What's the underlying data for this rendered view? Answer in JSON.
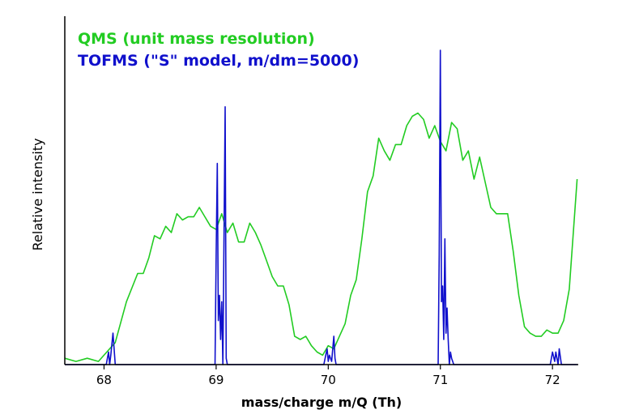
{
  "chart_data": {
    "type": "line",
    "title": "",
    "xlabel": "mass/charge m/Q (Th)",
    "ylabel": "Relative intensity",
    "xlim": [
      67.65,
      72.23
    ],
    "ylim": [
      0,
      100
    ],
    "xticks": [
      68,
      69,
      70,
      71,
      72
    ],
    "tick_labels": [
      "68",
      "69",
      "70",
      "71",
      "72"
    ],
    "grid": false,
    "legend": "top-left",
    "series": [
      {
        "name": "QMS (unit mass resolution)",
        "color": "#22cc22",
        "x": [
          67.65,
          67.75,
          67.85,
          67.95,
          68.0,
          68.1,
          68.2,
          68.3,
          68.35,
          68.4,
          68.45,
          68.5,
          68.55,
          68.6,
          68.65,
          68.7,
          68.75,
          68.8,
          68.85,
          68.9,
          68.95,
          69.0,
          69.05,
          69.1,
          69.15,
          69.2,
          69.25,
          69.3,
          69.35,
          69.4,
          69.45,
          69.5,
          69.55,
          69.6,
          69.65,
          69.7,
          69.75,
          69.8,
          69.85,
          69.9,
          69.95,
          70.0,
          70.05,
          70.1,
          70.15,
          70.2,
          70.25,
          70.3,
          70.35,
          70.4,
          70.45,
          70.5,
          70.55,
          70.6,
          70.65,
          70.7,
          70.75,
          70.8,
          70.85,
          70.9,
          70.95,
          71.0,
          71.05,
          71.1,
          71.15,
          71.2,
          71.25,
          71.3,
          71.35,
          71.4,
          71.45,
          71.5,
          71.55,
          71.6,
          71.65,
          71.7,
          71.75,
          71.8,
          71.85,
          71.9,
          71.95,
          72.0,
          72.05,
          72.1,
          72.15,
          72.22
        ],
        "values": [
          2,
          1,
          2,
          1,
          3,
          7,
          20,
          29,
          29,
          34,
          41,
          40,
          44,
          42,
          48,
          46,
          47,
          47,
          50,
          47,
          44,
          43,
          48,
          42,
          45,
          39,
          39,
          45,
          42,
          38,
          33,
          28,
          25,
          25,
          19,
          9,
          8,
          9,
          6,
          4,
          3,
          6,
          5,
          9,
          13,
          22,
          27,
          40,
          55,
          60,
          72,
          68,
          65,
          70,
          70,
          76,
          79,
          80,
          78,
          72,
          76,
          71,
          68,
          77,
          75,
          65,
          68,
          59,
          66,
          58,
          50,
          48,
          48,
          48,
          36,
          22,
          12,
          10,
          9,
          9,
          11,
          10,
          10,
          14,
          24,
          59
        ]
      },
      {
        "name": "TOFMS (\"S\" model, m/dm=5000)",
        "color": "#1010cc",
        "x": [
          67.65,
          68.02,
          68.04,
          68.05,
          68.06,
          68.08,
          68.1,
          68.99,
          69.0,
          69.01,
          69.02,
          69.03,
          69.04,
          69.05,
          69.06,
          69.08,
          69.09,
          69.1,
          69.96,
          69.99,
          70.0,
          70.01,
          70.03,
          70.05,
          70.06,
          70.07,
          70.1,
          70.98,
          70.99,
          71.0,
          71.01,
          71.02,
          71.03,
          71.04,
          71.05,
          71.06,
          71.07,
          71.08,
          71.09,
          71.1,
          71.12,
          71.98,
          72.0,
          72.02,
          72.03,
          72.05,
          72.06,
          72.08,
          72.1,
          72.22
        ],
        "values": [
          0,
          0,
          4,
          0,
          3,
          10,
          0,
          0,
          35,
          64,
          14,
          22,
          8,
          20,
          0,
          82,
          2,
          0,
          0,
          5,
          1,
          3,
          1,
          9,
          2,
          0,
          0,
          0,
          35,
          100,
          20,
          25,
          8,
          40,
          10,
          18,
          8,
          0,
          4,
          2,
          0,
          0,
          4,
          1,
          4,
          0,
          5,
          0,
          0,
          0
        ]
      }
    ]
  }
}
